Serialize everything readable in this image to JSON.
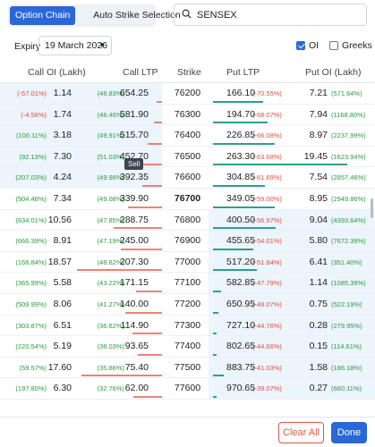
{
  "tabs": [
    {
      "label": "Option Chain",
      "active": true
    },
    {
      "label": "Auto Strike Selection",
      "active": false
    }
  ],
  "search": {
    "value": "SENSEX",
    "icon": "search-icon"
  },
  "expiry": {
    "label": "Expiry",
    "selected": "19 March 2026"
  },
  "toggles": {
    "oi": {
      "label": "OI",
      "checked": true
    },
    "greeks": {
      "label": "Greeks",
      "checked": false
    }
  },
  "headers": {
    "call_oi": "Call OI (Lakh)",
    "call_ltp": "Call LTP",
    "strike": "Strike",
    "put_ltp": "Put LTP",
    "put_oi": "Put OI (Lakh)"
  },
  "atm_strike": "76700",
  "tooltip": "Sell",
  "rows": [
    {
      "call_oi_chg": "(-57.01%)",
      "call_oi": "1.14",
      "call_ltp_chg": "(48.83%)",
      "call_ltp": "654.25",
      "strike": "76200",
      "put_ltp": "166.10",
      "put_ltp_chg": "(-70.55%)",
      "put_oi": "7.21",
      "put_oi_chg": "(571.64%)"
    },
    {
      "call_oi_chg": "(-4.58%)",
      "call_oi": "1.74",
      "call_ltp_chg": "(48.46%)",
      "call_ltp": "581.90",
      "strike": "76300",
      "put_ltp": "194.70",
      "put_ltp_chg": "(-68.07%)",
      "put_oi": "7.94",
      "put_oi_chg": "(1168.80%)"
    },
    {
      "call_oi_chg": "(100.11%)",
      "call_oi": "3.18",
      "call_ltp_chg": "(49.91%)",
      "call_ltp": "515.70",
      "strike": "76400",
      "put_ltp": "226.85",
      "put_ltp_chg": "(-66.08%)",
      "put_oi": "8.97",
      "put_oi_chg": "(2237.99%)"
    },
    {
      "call_oi_chg": "(92.13%)",
      "call_oi": "7.30",
      "call_ltp_chg": "(51.03%)",
      "call_ltp": "452.70",
      "strike": "76500",
      "put_ltp": "263.30",
      "put_ltp_chg": "(-63.68%)",
      "put_oi": "19.45",
      "put_oi_chg": "(1623.94%)"
    },
    {
      "call_oi_chg": "(207.03%)",
      "call_oi": "4.24",
      "call_ltp_chg": "(49.98%)",
      "call_ltp": "392.35",
      "strike": "76600",
      "put_ltp": "304.85",
      "put_ltp_chg": "(-61.69%)",
      "put_oi": "7.54",
      "put_oi_chg": "(2857.46%)"
    },
    {
      "call_oi_chg": "(504.48%)",
      "call_oi": "7.34",
      "call_ltp_chg": "(49.08%)",
      "call_ltp": "339.90",
      "strike": "76700",
      "put_ltp": "349.05",
      "put_ltp_chg": "(-59.00%)",
      "put_oi": "8.95",
      "put_oi_chg": "(2949.86%)"
    },
    {
      "call_oi_chg": "(634.01%)",
      "call_oi": "10.56",
      "call_ltp_chg": "(47.85%)",
      "call_ltp": "288.75",
      "strike": "76800",
      "put_ltp": "400.50",
      "put_ltp_chg": "(-56.97%)",
      "put_oi": "9.04",
      "put_oi_chg": "(4393.64%)"
    },
    {
      "call_oi_chg": "(666.39%)",
      "call_oi": "8.91",
      "call_ltp_chg": "(47.19%)",
      "call_ltp": "245.00",
      "strike": "76900",
      "put_ltp": "455.65",
      "put_ltp_chg": "(-54.01%)",
      "put_oi": "5.80",
      "put_oi_chg": "(7672.39%)"
    },
    {
      "call_oi_chg": "(166.84%)",
      "call_oi": "18.57",
      "call_ltp_chg": "(48.82%)",
      "call_ltp": "207.30",
      "strike": "77000",
      "put_ltp": "517.20",
      "put_ltp_chg": "(-51.84%)",
      "put_oi": "6.41",
      "put_oi_chg": "(351.40%)"
    },
    {
      "call_oi_chg": "(365.99%)",
      "call_oi": "5.58",
      "call_ltp_chg": "(43.22%)",
      "call_ltp": "171.15",
      "strike": "77100",
      "put_ltp": "582.85",
      "put_ltp_chg": "(-47.79%)",
      "put_oi": "1.14",
      "put_oi_chg": "(1085.39%)"
    },
    {
      "call_oi_chg": "(509.99%)",
      "call_oi": "8.06",
      "call_ltp_chg": "(41.27%)",
      "call_ltp": "140.00",
      "strike": "77200",
      "put_ltp": "650.95",
      "put_ltp_chg": "(-48.07%)",
      "put_oi": "0.75",
      "put_oi_chg": "(522.19%)"
    },
    {
      "call_oi_chg": "(303.87%)",
      "call_oi": "6.51",
      "call_ltp_chg": "(36.62%)",
      "call_ltp": "114.90",
      "strike": "77300",
      "put_ltp": "727.10",
      "put_ltp_chg": "(-44.76%)",
      "put_oi": "0.28",
      "put_oi_chg": "(279.95%)"
    },
    {
      "call_oi_chg": "(220.54%)",
      "call_oi": "5.19",
      "call_ltp_chg": "(38.03%)",
      "call_ltp": "93.65",
      "strike": "77400",
      "put_ltp": "802.65",
      "put_ltp_chg": "(-44.66%)",
      "put_oi": "0.15",
      "put_oi_chg": "(114.61%)"
    },
    {
      "call_oi_chg": "(59.57%)",
      "call_oi": "17.60",
      "call_ltp_chg": "(35.86%)",
      "call_ltp": "75.40",
      "strike": "77500",
      "put_ltp": "883.75",
      "put_ltp_chg": "(-41.03%)",
      "put_oi": "1.58",
      "put_oi_chg": "(186.18%)"
    },
    {
      "call_oi_chg": "(197.80%)",
      "call_oi": "6.30",
      "call_ltp_chg": "(32.76%)",
      "call_ltp": "62.00",
      "strike": "77600",
      "put_ltp": "970.65",
      "put_ltp_chg": "(-39.07%)",
      "put_oi": "0.27",
      "put_oi_chg": "(660.11%)"
    }
  ],
  "footer": {
    "clear_label": "Clear All",
    "done_label": "Done"
  },
  "colors": {
    "accent": "#2a68d8",
    "positive": "#2a9a3c",
    "negative": "#e04f3f",
    "itm_bg": "#ecf4fc",
    "call_bar": "#e9837a",
    "put_bar": "#2f9e8b"
  }
}
